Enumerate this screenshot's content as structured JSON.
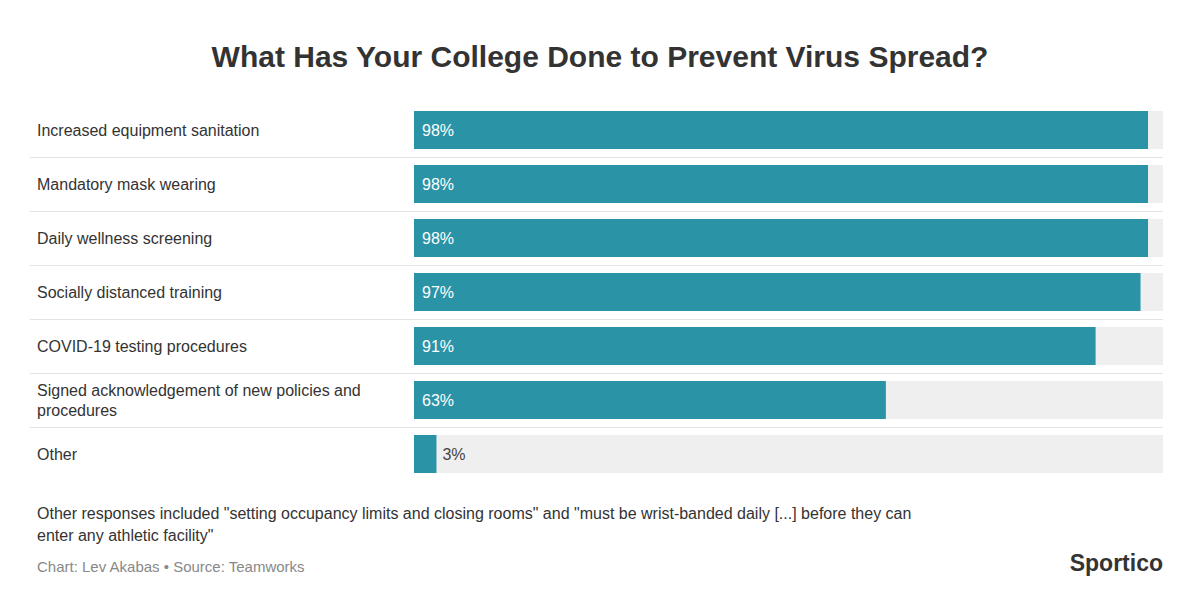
{
  "chart_data": {
    "type": "bar",
    "orientation": "horizontal",
    "title": "What Has Your College Done to Prevent Virus Spread?",
    "categories": [
      "Increased equipment sanitation",
      "Mandatory mask wearing",
      "Daily wellness screening",
      "Socially distanced training",
      "COVID-19 testing procedures",
      "Signed acknowledgement of new policies and procedures",
      "Other"
    ],
    "values": [
      98,
      98,
      98,
      97,
      91,
      63,
      3
    ],
    "value_labels": [
      "98%",
      "98%",
      "98%",
      "97%",
      "91%",
      "63%",
      "3%"
    ],
    "color": "#2b93a6",
    "xlim": [
      0,
      100
    ],
    "tick_labels": "y",
    "data_labels": true,
    "grid": false,
    "note": "Other responses included \"setting occupancy limits and closing rooms\" and \"must be wrist-banded daily [...] before they can enter any athletic facility\"",
    "source": "Chart: Lev Akabas • Source: Teamworks",
    "brand": "Sportico"
  }
}
